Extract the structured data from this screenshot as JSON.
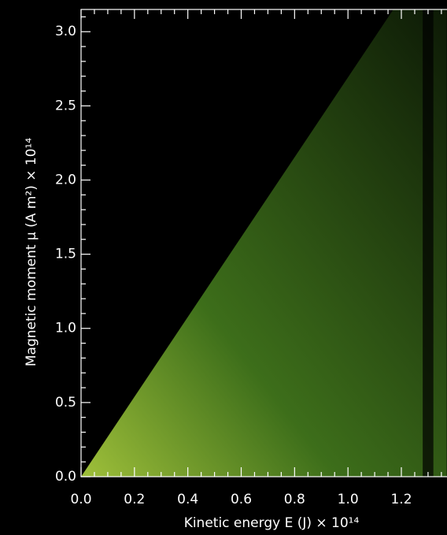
{
  "chart_data": {
    "type": "area",
    "x_label": "Kinetic energy E (J) × 10¹⁴",
    "y_label": "Magnetic moment μ (A m²) × 10¹⁴",
    "x": [
      0,
      1.17,
      1.37
    ],
    "values": [
      0,
      3.15,
      3.15
    ],
    "color": "#3f7a1c",
    "xlim": [
      0,
      1.371
    ],
    "ylim": [
      0,
      3.15
    ],
    "xticks": [
      {
        "value": 0,
        "label": "0.0"
      },
      {
        "value": 0.2,
        "label": "0.2"
      },
      {
        "value": 0.4,
        "label": "0.4"
      },
      {
        "value": 0.6,
        "label": "0.6"
      },
      {
        "value": 0.8,
        "label": "0.8"
      },
      {
        "value": 1.0,
        "label": "1.0"
      },
      {
        "value": 1.2,
        "label": "1.2"
      }
    ],
    "yticks": [
      {
        "value": 0,
        "label": "0.0"
      },
      {
        "value": 0.5,
        "label": "0.5"
      },
      {
        "value": 1.0,
        "label": "1.0"
      },
      {
        "value": 1.5,
        "label": "1.5"
      },
      {
        "value": 2.0,
        "label": "2.0"
      },
      {
        "value": 2.5,
        "label": "2.5"
      },
      {
        "value": 3.0,
        "label": "3.0"
      }
    ],
    "xminorticks": [
      0.05,
      0.1,
      0.15,
      0.25,
      0.3,
      0.35,
      0.45,
      0.5,
      0.55,
      0.65,
      0.7,
      0.75,
      0.85,
      0.9,
      0.95,
      1.05,
      1.1,
      1.15,
      1.25,
      1.3,
      1.35
    ],
    "yminorticks": [
      0.1,
      0.2,
      0.3,
      0.4,
      0.6,
      0.7,
      0.8,
      0.9,
      1.1,
      1.2,
      1.3,
      1.4,
      1.6,
      1.7,
      1.8,
      1.9,
      2.1,
      2.2,
      2.3,
      2.4,
      2.6,
      2.7,
      2.8,
      2.9,
      3.1
    ]
  }
}
